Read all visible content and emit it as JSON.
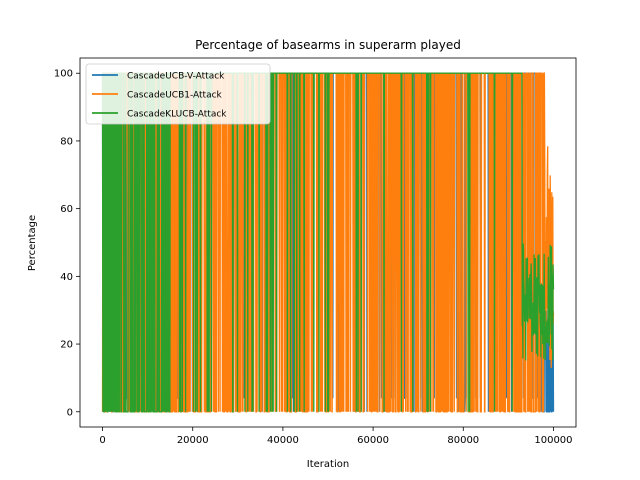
{
  "chart_data": {
    "type": "line",
    "title": "Percentage of basearms in superarm played",
    "xlabel": "Iteration",
    "ylabel": "Percentage",
    "xlim": [
      -5000,
      105000
    ],
    "ylim": [
      -4.5,
      104.5
    ],
    "xticks": [
      0,
      20000,
      40000,
      60000,
      80000,
      100000
    ],
    "xtick_labels": [
      "0",
      "20000",
      "40000",
      "60000",
      "80000",
      "100000"
    ],
    "yticks": [
      0,
      20,
      40,
      60,
      80,
      100
    ],
    "ytick_labels": [
      "0",
      "20",
      "40",
      "60",
      "80",
      "100"
    ],
    "grid": false,
    "legend_position": "top-left",
    "series": [
      {
        "name": "CascadeUCB-V-Attack",
        "color": "#1f77b4",
        "values_min": 0,
        "values_max": 100,
        "x": [
          0,
          5000,
          10000,
          20000,
          30000,
          40000,
          50000,
          60000,
          70000,
          80000,
          90000,
          100000
        ],
        "y": [
          0,
          100,
          0,
          100,
          100,
          4,
          100,
          4,
          100,
          4,
          100,
          0
        ]
      },
      {
        "name": "CascadeUCB1-Attack",
        "color": "#ff7f0e",
        "values_min": 0,
        "values_max": 100,
        "x": [
          0,
          5000,
          10000,
          20000,
          30000,
          40000,
          50000,
          60000,
          70000,
          80000,
          90000,
          100000
        ],
        "y": [
          12,
          100,
          0,
          100,
          0,
          100,
          0,
          100,
          0,
          100,
          0,
          12
        ]
      },
      {
        "name": "CascadeKLUCB-Attack",
        "color": "#2ca02c",
        "values_min": 0,
        "values_max": 100,
        "x": [
          0,
          5000,
          10000,
          20000,
          30000,
          40000,
          50000,
          60000,
          70000,
          80000,
          90000,
          100000
        ],
        "y": [
          0,
          100,
          0,
          100,
          0,
          100,
          0,
          100,
          0,
          100,
          40,
          20
        ]
      }
    ]
  }
}
